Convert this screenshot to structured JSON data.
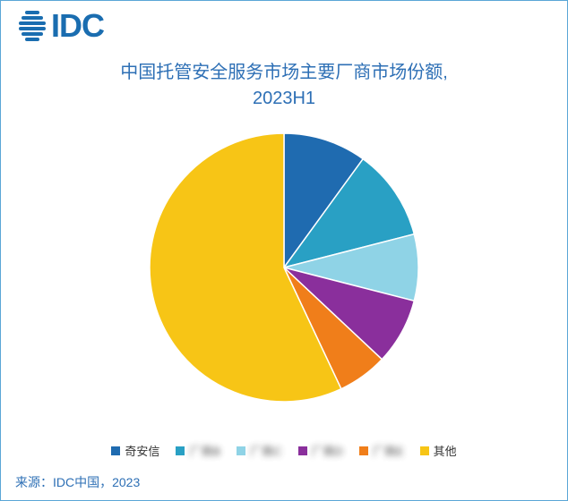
{
  "brand": {
    "name": "IDC",
    "mark_color": "#1a6db0"
  },
  "frame": {
    "border_color": "#5aa6d6",
    "background_color": "#ffffff"
  },
  "chart": {
    "type": "pie",
    "title_line1": "中国托管安全服务市场主要厂商市场份额,",
    "title_line2": "2023H1",
    "title_color": "#2d6fb5",
    "title_fontsize": 20,
    "background_color": "#ffffff",
    "radius": 150,
    "slices": [
      {
        "label": "奇安信",
        "value": 10,
        "color": "#1f6bb0",
        "blurred": false
      },
      {
        "label": "厂商B",
        "value": 11,
        "color": "#29a0c4",
        "blurred": true
      },
      {
        "label": "厂商C",
        "value": 8,
        "color": "#8fd3e6",
        "blurred": true
      },
      {
        "label": "厂商D",
        "value": 8,
        "color": "#8a2f9c",
        "blurred": true
      },
      {
        "label": "厂商E",
        "value": 6,
        "color": "#f07e1a",
        "blurred": true
      },
      {
        "label": "其他",
        "value": 57,
        "color": "#f7c516",
        "blurred": false
      }
    ],
    "start_angle_deg": -90,
    "stroke_color": "#ffffff",
    "stroke_width": 1.5,
    "legend": {
      "fontsize": 13,
      "text_color": "#333333",
      "swatch_size": 10,
      "gap": 18
    }
  },
  "source": {
    "text": "来源：IDC中国，2023",
    "color": "#2d6fb5",
    "fontsize": 14
  }
}
